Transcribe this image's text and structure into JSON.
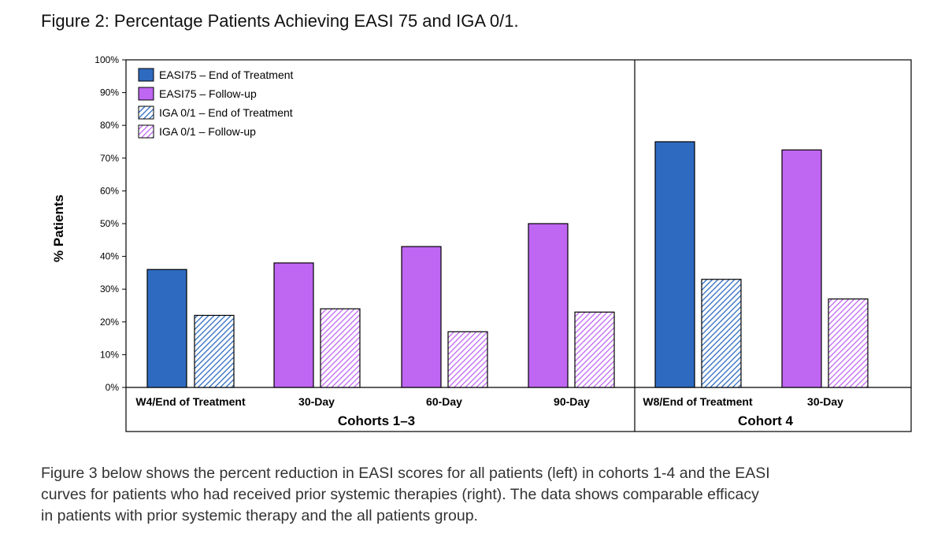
{
  "figure_title": "Figure 2: Percentage Patients Achieving EASI 75 and IGA 0/1.",
  "caption_lines": [
    "Figure 3 below shows the percent reduction in EASI scores for all patients (left) in cohorts 1-4 and the EASI",
    "curves for patients who had received prior systemic therapies (right). The data shows comparable efficacy",
    "in patients with prior systemic therapy and the all patients group."
  ],
  "colors": {
    "easi_end": "#2e6bc0",
    "easi_follow": "#bf66f2",
    "iga_end_stripe": "#2e6bc0",
    "iga_follow_stripe": "#bf66f2"
  },
  "chart_data": {
    "type": "bar",
    "title": "",
    "ylabel": "% Patients",
    "ylim": [
      0,
      100
    ],
    "yticks": [
      "0%",
      "10%",
      "20%",
      "30%",
      "40%",
      "50%",
      "60%",
      "70%",
      "80%",
      "90%",
      "100%"
    ],
    "grid": false,
    "legend_position": "top-left",
    "legend": [
      {
        "label": "EASI75 – End of Treatment",
        "style": "solid-blue"
      },
      {
        "label": "EASI75 – Follow-up",
        "style": "solid-purple"
      },
      {
        "label": "IGA 0/1 – End of Treatment",
        "style": "hatched-blue"
      },
      {
        "label": "IGA 0/1 – Follow-up",
        "style": "hatched-purple"
      }
    ],
    "groups": [
      {
        "label": "Cohorts 1–3",
        "categories": [
          "W4/End of Treatment",
          "30-Day",
          "60-Day",
          "90-Day"
        ]
      },
      {
        "label": "Cohort 4",
        "categories": [
          "W8/End of Treatment",
          "30-Day"
        ]
      }
    ],
    "categories": [
      "W4/End of Treatment",
      "30-Day",
      "60-Day",
      "90-Day",
      "W8/End of Treatment",
      "30-Day"
    ],
    "series": [
      {
        "name": "EASI75",
        "values": [
          36,
          38,
          43,
          50,
          75,
          72.5
        ]
      },
      {
        "name": "IGA 0/1",
        "values": [
          22,
          24,
          17,
          23,
          33,
          27
        ]
      }
    ]
  }
}
